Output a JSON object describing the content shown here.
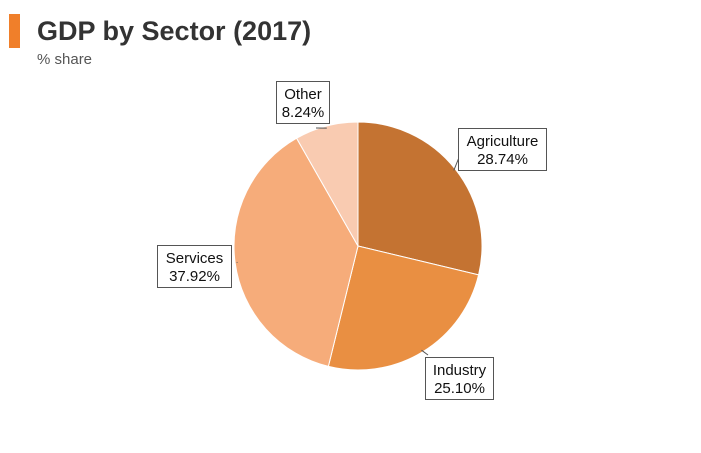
{
  "header": {
    "title": "GDP by Sector (2017)",
    "subtitle": "% share",
    "accent_color": "#f07f2a"
  },
  "chart_data": {
    "type": "pie",
    "title": "GDP by Sector (2017)",
    "subtitle": "% share",
    "unit": "%",
    "start_angle": "12 o'clock",
    "direction": "clockwise",
    "slices": [
      {
        "label": "Agriculture",
        "value": 28.74,
        "display": "28.74%",
        "color": "#c47332"
      },
      {
        "label": "Industry",
        "value": 25.1,
        "display": "25.10%",
        "color": "#e98f42"
      },
      {
        "label": "Services",
        "value": 37.92,
        "display": "37.92%",
        "color": "#f6ac7a"
      },
      {
        "label": "Other",
        "value": 8.24,
        "display": "8.24%",
        "color": "#f9cbb1"
      }
    ]
  }
}
